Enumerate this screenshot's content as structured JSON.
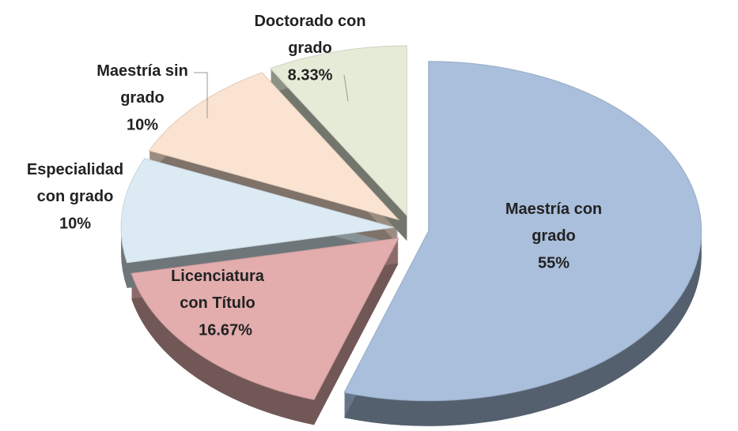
{
  "chart_data": {
    "type": "pie",
    "categories": [
      "Maestría con grado",
      "Licenciatura con Título",
      "Especialidad con grado",
      "Maestría sin grado",
      "Doctorado con grado"
    ],
    "values": [
      55,
      16.67,
      10,
      10,
      8.33
    ],
    "value_labels": [
      "55%",
      "16.67%",
      "10%",
      "10%",
      "8.33%"
    ],
    "colors": [
      "#a9bfdc",
      "#e3adad",
      "#dcebf3",
      "#fbe3d2",
      "#e5ebd7"
    ]
  }
}
